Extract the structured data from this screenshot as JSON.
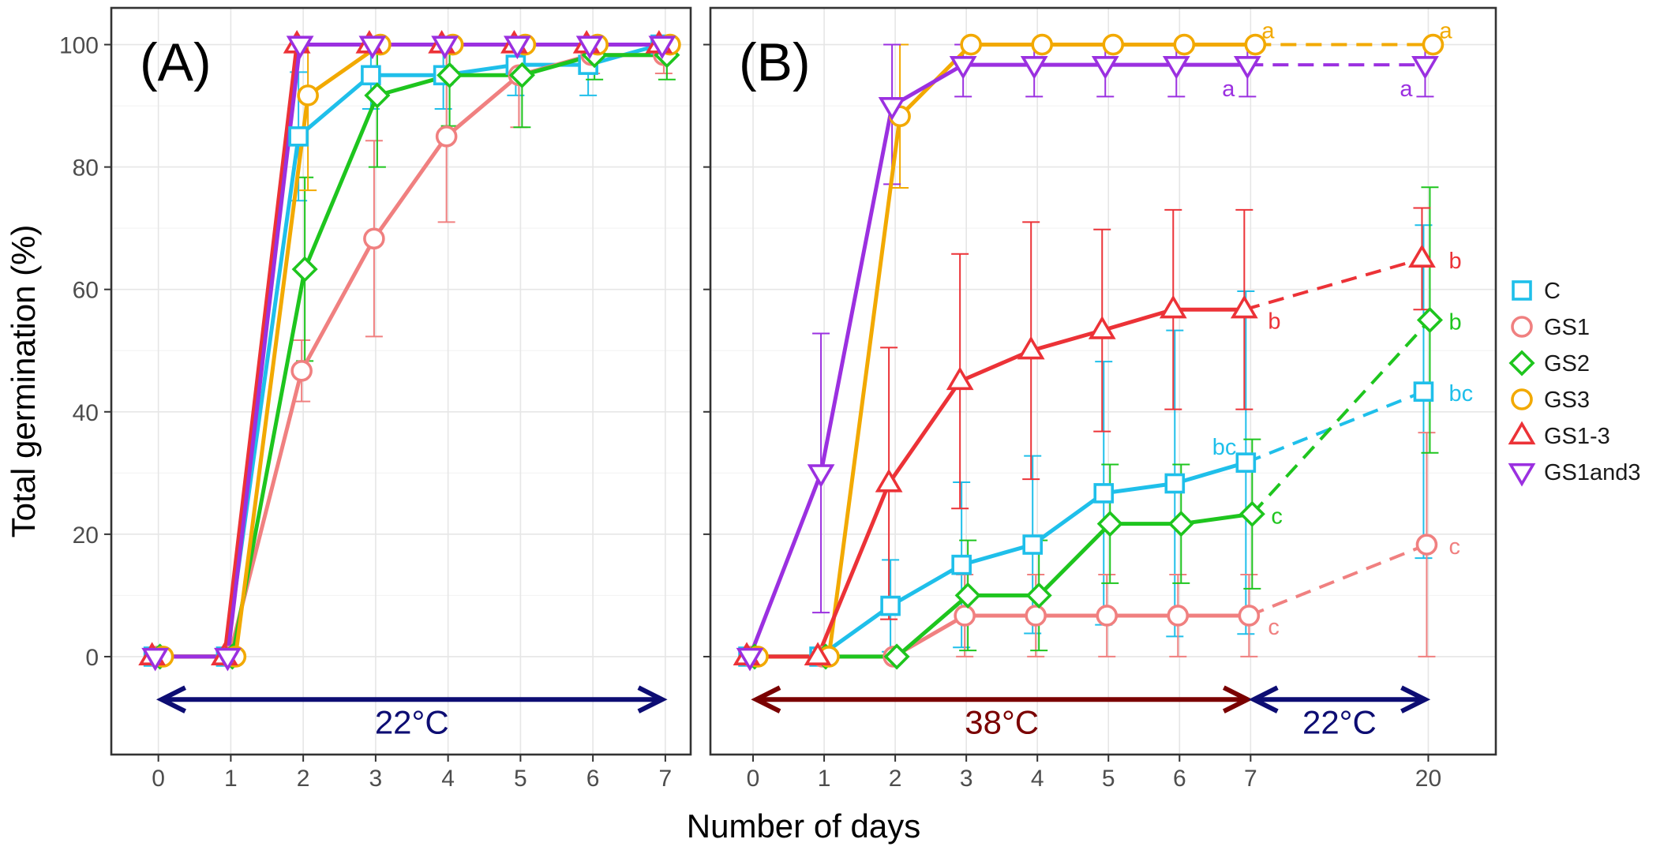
{
  "chart_data": {
    "type": "line",
    "ylabel": "Total germination (%)",
    "xlabel": "Number of days",
    "ylim": [
      -16,
      106
    ],
    "yticks": [
      0,
      20,
      40,
      60,
      80,
      100
    ],
    "grid": true,
    "legend_position": "right",
    "series_styles": [
      {
        "name": "C",
        "color": "#1fbfea",
        "marker": "square"
      },
      {
        "name": "GS1",
        "color": "#f08080",
        "marker": "circle"
      },
      {
        "name": "GS2",
        "color": "#1ec51e",
        "marker": "diamond"
      },
      {
        "name": "GS3",
        "color": "#f2a900",
        "marker": "circle"
      },
      {
        "name": "GS1-3",
        "color": "#ec3237",
        "marker": "triangle-up"
      },
      {
        "name": "GS1and3",
        "color": "#9b30e0",
        "marker": "triangle-down"
      }
    ],
    "panels": [
      {
        "tag": "(A)",
        "x": [
          0,
          1,
          2,
          3,
          4,
          5,
          6,
          7
        ],
        "xtick_labels": [
          "0",
          "1",
          "2",
          "3",
          "4",
          "5",
          "6",
          "7"
        ],
        "xlim": [
          -0.65,
          7.35
        ],
        "temperature_bands": [
          {
            "label": "22°C",
            "from": 0,
            "to": 7,
            "color": "#0d0d73"
          }
        ],
        "series": [
          {
            "name": "C",
            "values": [
              0,
              0,
              85,
              95,
              95,
              96.7,
              96.7,
              100
            ],
            "errors": [
              0,
              0,
              10.5,
              5.5,
              5.5,
              5,
              5,
              0
            ],
            "dashed_from": null
          },
          {
            "name": "GS1",
            "values": [
              0,
              0,
              46.7,
              68.3,
              85,
              95,
              98.3,
              98.3
            ],
            "errors": [
              0,
              0,
              5,
              16,
              14,
              8.5,
              3,
              3
            ],
            "dashed_from": null
          },
          {
            "name": "GS2",
            "values": [
              0,
              0,
              63.3,
              91.7,
              95,
              95,
              98.3,
              98.3
            ],
            "errors": [
              0,
              0,
              15,
              11.7,
              8.3,
              8.5,
              4,
              4
            ],
            "dashed_from": null
          },
          {
            "name": "GS3",
            "values": [
              0,
              0,
              91.7,
              100,
              100,
              100,
              100,
              100
            ],
            "errors": [
              0,
              0,
              15.5,
              0,
              0,
              0,
              0,
              0
            ],
            "dashed_from": null
          },
          {
            "name": "GS1-3",
            "values": [
              0,
              0,
              100,
              100,
              100,
              100,
              100,
              100
            ],
            "errors": [
              0,
              0,
              0,
              0,
              0,
              0,
              0,
              0
            ],
            "dashed_from": null
          },
          {
            "name": "GS1and3",
            "values": [
              0,
              0,
              100,
              100,
              100,
              100,
              100,
              100
            ],
            "errors": [
              0,
              0,
              0,
              0,
              0,
              0,
              0,
              0
            ],
            "dashed_from": null
          }
        ],
        "annotations": []
      },
      {
        "tag": "(B)",
        "x": [
          0,
          1,
          2,
          3,
          4,
          5,
          6,
          7,
          9.5
        ],
        "xtick_labels": [
          "0",
          "1",
          "2",
          "3",
          "4",
          "5",
          "6",
          "7",
          "20"
        ],
        "xlim": [
          -0.6,
          10.45
        ],
        "temperature_bands": [
          {
            "label": "38°C",
            "from": 0,
            "to": 7,
            "color": "#7a0000"
          },
          {
            "label": "22°C",
            "from": 7,
            "to": 9.5,
            "color": "#0d0d73"
          }
        ],
        "series": [
          {
            "name": "C",
            "values": [
              0,
              0,
              8.3,
              15,
              18.3,
              26.7,
              28.3,
              31.7,
              43.3
            ],
            "errors": [
              0,
              0,
              7.5,
              13.5,
              14.5,
              21.5,
              25,
              28,
              27.2
            ],
            "dashed_from": 7
          },
          {
            "name": "GS1",
            "values": [
              0,
              0,
              0,
              6.7,
              6.7,
              6.7,
              6.7,
              6.7,
              18.3
            ],
            "errors": [
              0,
              0,
              0,
              6.7,
              6.7,
              6.7,
              6.7,
              6.7,
              18.3
            ],
            "dashed_from": 7
          },
          {
            "name": "GS2",
            "values": [
              0,
              0,
              0,
              10,
              10,
              21.7,
              21.7,
              23.3,
              55
            ],
            "errors": [
              0,
              0,
              0,
              9,
              9,
              9.7,
              9.7,
              12.2,
              21.7
            ],
            "dashed_from": 7
          },
          {
            "name": "GS3",
            "values": [
              0,
              0,
              88.3,
              100,
              100,
              100,
              100,
              100,
              100
            ],
            "errors": [
              0,
              0,
              11.7,
              0,
              0,
              0,
              0,
              0,
              0
            ],
            "dashed_from": 7
          },
          {
            "name": "GS1-3",
            "values": [
              0,
              0,
              28.3,
              45,
              50,
              53.3,
              56.7,
              56.7,
              65
            ],
            "errors": [
              0,
              0,
              22.2,
              20.8,
              21,
              16.5,
              16.3,
              16.3,
              8.3
            ],
            "dashed_from": 7
          },
          {
            "name": "GS1and3",
            "values": [
              0,
              30,
              90,
              96.7,
              96.7,
              96.7,
              96.7,
              96.7,
              96.7
            ],
            "errors": [
              0,
              22.8,
              12.8,
              5.2,
              5.2,
              5.2,
              5.2,
              5.2,
              5.2
            ],
            "dashed_from": 7
          }
        ],
        "annotations": [
          {
            "text": "a",
            "series": "GS3",
            "x": 7,
            "y": 100,
            "place": "above-right"
          },
          {
            "text": "a",
            "series": "GS3",
            "x": 9.5,
            "y": 100,
            "place": "above-right"
          },
          {
            "text": "a",
            "series": "GS1and3",
            "x": 7,
            "y": 96.7,
            "place": "below-left"
          },
          {
            "text": "a",
            "series": "GS1and3",
            "x": 9.5,
            "y": 96.7,
            "place": "below-left"
          },
          {
            "text": "b",
            "series": "GS1-3",
            "x": 7,
            "y": 56.7,
            "place": "below-right"
          },
          {
            "text": "b",
            "series": "GS1-3",
            "x": 9.5,
            "y": 65,
            "place": "right"
          },
          {
            "text": "b",
            "series": "GS2",
            "x": 9.5,
            "y": 55,
            "place": "right"
          },
          {
            "text": "bc",
            "series": "C",
            "x": 7,
            "y": 31.7,
            "place": "above-left"
          },
          {
            "text": "bc",
            "series": "C",
            "x": 9.5,
            "y": 43.3,
            "place": "right"
          },
          {
            "text": "c",
            "series": "GS2",
            "x": 7,
            "y": 23.3,
            "place": "right"
          },
          {
            "text": "c",
            "series": "GS1",
            "x": 7,
            "y": 6.7,
            "place": "below-right"
          },
          {
            "text": "c",
            "series": "GS1",
            "x": 9.5,
            "y": 18.3,
            "place": "right"
          }
        ]
      }
    ]
  }
}
